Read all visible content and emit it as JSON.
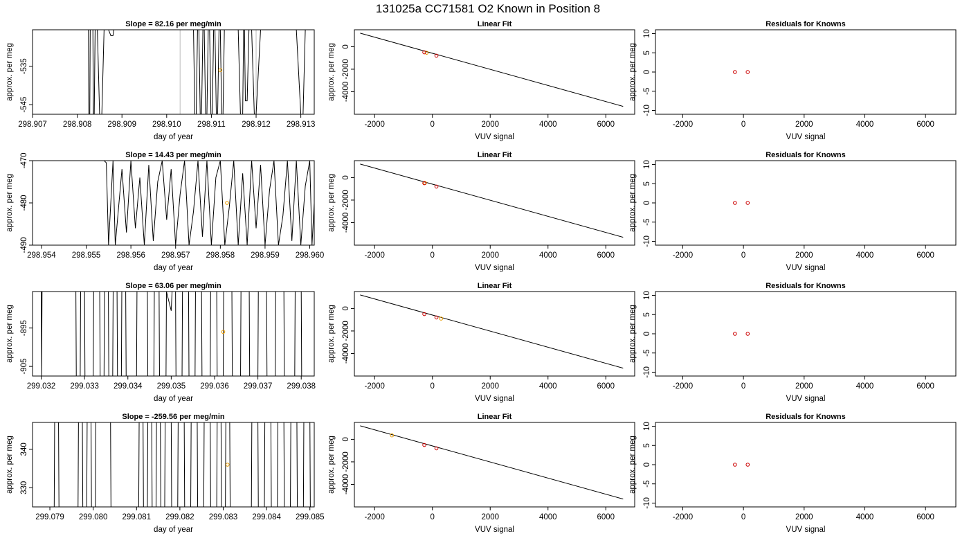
{
  "page_title": "131025a     CC71581   O2 Known in Position  8",
  "chart_data": [
    {
      "type": "line",
      "row": 0,
      "col": 0,
      "title": "Slope =  82.16  per meg/min",
      "xlabel": "day of year",
      "ylabel": "approx. per meg",
      "xlim": [
        298.907,
        298.9133
      ],
      "ylim": [
        -547.5,
        -525.5
      ],
      "xticks": [
        298.907,
        298.908,
        298.909,
        298.91,
        298.911,
        298.912,
        298.913
      ],
      "xtick_labels": [
        "298.907",
        "298.908",
        "298.909",
        "298.910",
        "298.911",
        "298.912",
        "298.913"
      ],
      "yticks": [
        -535,
        -545
      ],
      "ytick_labels": [
        "-535",
        "-545"
      ],
      "trace_x": [
        298.90825,
        298.90826,
        298.90828,
        298.90829,
        298.90835,
        298.90836,
        298.90838,
        298.9084,
        298.90845,
        298.9085,
        298.90855,
        298.9086,
        298.9087,
        298.90875,
        298.9088,
        298.90882,
        298.90884,
        298.90886,
        298.9089,
        298.909,
        298.9095,
        298.91,
        298.9103,
        298.9106,
        298.91063,
        298.91066,
        298.91069,
        298.91072,
        298.91075,
        298.91078,
        298.91081,
        298.91084,
        298.91087,
        298.9109,
        298.91093,
        298.91096,
        298.91099,
        298.91102,
        298.91105,
        298.91108,
        298.91111,
        298.91114,
        298.91117,
        298.9112,
        298.91123,
        298.91126,
        298.91129,
        298.9114,
        298.9116,
        298.91165,
        298.9117,
        298.91172,
        298.91174,
        298.91176,
        298.9118,
        298.91184,
        298.9119,
        298.91196,
        298.912,
        298.9121,
        298.9123,
        298.9125,
        298.9129,
        298.913,
        298.91305,
        298.9131,
        298.91313,
        298.9132
      ],
      "trace_y": [
        -525.5,
        -547.5,
        -547.5,
        -525.5,
        -525.5,
        -547.5,
        -547.5,
        -525.5,
        -525.5,
        -547.5,
        -547.5,
        -525.5,
        -525.5,
        -527,
        -527,
        -525.5,
        -525.5,
        -525.5,
        -525.5,
        -525.5,
        -525.5,
        -525.5,
        -525.5,
        -525.5,
        -547.5,
        -547.5,
        -525.5,
        -525.5,
        -547.5,
        -547.5,
        -525.5,
        -525.5,
        -547.5,
        -547.5,
        -525.5,
        -525.5,
        -547.5,
        -547.5,
        -525.5,
        -525.5,
        -547.5,
        -547.5,
        -525.5,
        -525.5,
        -547.5,
        -547.5,
        -525.5,
        -525.5,
        -525.5,
        -547.5,
        -547.5,
        -525.5,
        -525.5,
        -544,
        -544,
        -525.5,
        -525.5,
        -547.5,
        -547.5,
        -525.5,
        -525.5,
        -525.5,
        -525.5,
        -547.5,
        -547.5,
        -525.5,
        -525.5,
        -525.5
      ],
      "grey_lines_x": [
        298.9103,
        298.912
      ],
      "known_point": {
        "x": 298.9112,
        "y": -536
      }
    },
    {
      "type": "scatter",
      "row": 0,
      "col": 1,
      "title": "Linear Fit",
      "xlabel": "VUV signal",
      "ylabel": "approx. per meg",
      "xlim": [
        -2700,
        7000
      ],
      "ylim": [
        -6000,
        1500
      ],
      "xticks": [
        -2000,
        0,
        2000,
        4000,
        6000
      ],
      "xtick_labels": [
        "-2000",
        "0",
        "2000",
        "4000",
        "6000"
      ],
      "yticks": [
        0,
        -2000,
        -4000
      ],
      "ytick_labels": [
        "0",
        "-2000",
        "-4000"
      ],
      "fit_line": {
        "x": [
          -2500,
          6600
        ],
        "y": [
          1200,
          -5300
        ]
      },
      "points_red": [
        {
          "x": -280,
          "y": -500
        },
        {
          "x": 140,
          "y": -800
        }
      ],
      "points_orange": [
        {
          "x": -200,
          "y": -540
        }
      ]
    },
    {
      "type": "scatter",
      "row": 0,
      "col": 2,
      "title": "Residuals for Knowns",
      "xlabel": "VUV signal",
      "ylabel": "approx. per meg",
      "xlim": [
        -2900,
        7000
      ],
      "ylim": [
        -11,
        11
      ],
      "xticks": [
        -2000,
        0,
        2000,
        4000,
        6000
      ],
      "xtick_labels": [
        "-2000",
        "0",
        "2000",
        "4000",
        "6000"
      ],
      "yticks": [
        10,
        5,
        0,
        -5,
        -10
      ],
      "ytick_labels": [
        "10",
        "5",
        "0",
        "-5",
        "-10"
      ],
      "points_red": [
        {
          "x": -280,
          "y": 0
        },
        {
          "x": 140,
          "y": 0
        }
      ]
    },
    {
      "type": "line",
      "row": 1,
      "col": 0,
      "title": "Slope =  14.43  per meg/min",
      "xlabel": "day of year",
      "ylabel": "approx. per meg",
      "xlim": [
        298.9538,
        298.9601
      ],
      "ylim": [
        -490,
        -470
      ],
      "xticks": [
        298.954,
        298.955,
        298.956,
        298.957,
        298.958,
        298.959,
        298.96
      ],
      "xtick_labels": [
        "298.954",
        "298.955",
        "298.956",
        "298.957",
        "298.958",
        "298.959",
        "298.960"
      ],
      "yticks": [
        -470,
        -480,
        -490
      ],
      "ytick_labels": [
        "-470",
        "-480",
        "-490"
      ],
      "trace_x": [
        298.9554,
        298.95545,
        298.9555,
        298.9556,
        298.95565,
        298.9558,
        298.9559,
        298.956,
        298.9561,
        298.9562,
        298.9563,
        298.9564,
        298.9565,
        298.9566,
        298.9567,
        298.9568,
        298.9569,
        298.957,
        298.9571,
        298.9572,
        298.9573,
        298.9574,
        298.9575,
        298.9576,
        298.9577,
        298.9578,
        298.9579,
        298.958,
        298.9581,
        298.9582,
        298.9583,
        298.9584,
        298.9585,
        298.9586,
        298.9587,
        298.9588,
        298.9589,
        298.959,
        298.9591,
        298.9592,
        298.9593,
        298.9594,
        298.9595,
        298.9596,
        298.9597,
        298.9598,
        298.9599,
        298.96,
        298.96005,
        298.9601
      ],
      "trace_y": [
        -470,
        -470.5,
        -490,
        -470,
        -490,
        -472,
        -487,
        -470,
        -486,
        -474,
        -490,
        -471,
        -489,
        -475,
        -470,
        -484,
        -472,
        -490,
        -478,
        -470,
        -490,
        -482,
        -470,
        -488,
        -470,
        -490,
        -474,
        -470,
        -490,
        -481,
        -470,
        -490,
        -473,
        -490,
        -470,
        -486,
        -471,
        -490,
        -477,
        -470,
        -490,
        -483,
        -470,
        -489,
        -470,
        -490,
        -476,
        -470,
        -490,
        -480
      ],
      "grey_lines_x": [],
      "known_point": {
        "x": 298.95815,
        "y": -480
      }
    },
    {
      "type": "scatter",
      "row": 1,
      "col": 1,
      "title": "Linear Fit",
      "xlabel": "VUV signal",
      "ylabel": "approx. per meg",
      "xlim": [
        -2700,
        7000
      ],
      "ylim": [
        -6000,
        1500
      ],
      "xticks": [
        -2000,
        0,
        2000,
        4000,
        6000
      ],
      "xtick_labels": [
        "-2000",
        "0",
        "2000",
        "4000",
        "6000"
      ],
      "yticks": [
        0,
        -2000,
        -4000
      ],
      "ytick_labels": [
        "0",
        "-2000",
        "-4000"
      ],
      "fit_line": {
        "x": [
          -2500,
          6600
        ],
        "y": [
          1200,
          -5300
        ]
      },
      "points_red": [
        {
          "x": -280,
          "y": -500
        },
        {
          "x": 140,
          "y": -800
        }
      ],
      "points_orange": [
        {
          "x": -260,
          "y": -480
        }
      ]
    },
    {
      "type": "scatter",
      "row": 1,
      "col": 2,
      "title": "Residuals for Knowns",
      "xlabel": "VUV signal",
      "ylabel": "approx. per meg",
      "xlim": [
        -2900,
        7000
      ],
      "ylim": [
        -11,
        11
      ],
      "xticks": [
        -2000,
        0,
        2000,
        4000,
        6000
      ],
      "xtick_labels": [
        "-2000",
        "0",
        "2000",
        "4000",
        "6000"
      ],
      "yticks": [
        10,
        5,
        0,
        -5,
        -10
      ],
      "ytick_labels": [
        "10",
        "5",
        "0",
        "-5",
        "-10"
      ],
      "points_red": [
        {
          "x": -280,
          "y": 0
        },
        {
          "x": 140,
          "y": 0
        }
      ]
    },
    {
      "type": "line",
      "row": 2,
      "col": 0,
      "title": "Slope =  63.06  per meg/min",
      "xlabel": "day of year",
      "ylabel": "approx. per meg",
      "xlim": [
        299.0318,
        299.0383
      ],
      "ylim": [
        -907.5,
        -885.5
      ],
      "xticks": [
        299.032,
        299.033,
        299.034,
        299.035,
        299.036,
        299.037,
        299.038
      ],
      "xtick_labels": [
        "299.032",
        "299.033",
        "299.034",
        "299.035",
        "299.036",
        "299.037",
        "299.038"
      ],
      "yticks": [
        -895,
        -905
      ],
      "ytick_labels": [
        "-895",
        "-905"
      ],
      "trace_x": [
        299.032,
        299.03201,
        299.03202,
        299.0328,
        299.03281,
        299.0329,
        299.03291,
        299.033,
        299.03301,
        299.0332,
        299.03321,
        299.03335,
        299.03336,
        299.03345,
        299.03346,
        299.03355,
        299.03356,
        299.03365,
        299.03366,
        299.03375,
        299.03376,
        299.03385,
        299.03386,
        299.03395,
        299.03396,
        299.0342,
        299.03421,
        299.03445,
        299.03446,
        299.0346,
        299.03461,
        299.03472,
        299.03473,
        299.03488,
        299.03489,
        299.035,
        299.03502,
        299.0351,
        299.03511,
        299.03525,
        299.03526,
        299.0354,
        299.03541,
        299.03555,
        299.03556,
        299.0357,
        299.03571,
        299.0359,
        299.03591,
        299.03605,
        299.03606,
        299.0362,
        299.03621,
        299.0364,
        299.03641,
        299.0366,
        299.03661,
        299.0368,
        299.03681,
        299.037,
        299.03701,
        299.0372,
        299.03721,
        299.0374,
        299.03741,
        299.0376,
        299.03761,
        299.03785,
        299.03786,
        299.038,
        299.03801,
        299.03808
      ],
      "trace_y": [
        -885.5,
        -907.5,
        -885.5,
        -885.5,
        -907.5,
        -907.5,
        -885.5,
        -885.5,
        -907.5,
        -907.5,
        -885.5,
        -885.5,
        -907.5,
        -907.5,
        -885.5,
        -885.5,
        -907.5,
        -907.5,
        -885.5,
        -885.5,
        -907.5,
        -907.5,
        -885.5,
        -885.5,
        -907.5,
        -907.5,
        -885.5,
        -885.5,
        -907.5,
        -907.5,
        -885.5,
        -885.5,
        -907.5,
        -907.5,
        -885.5,
        -890.5,
        -885.5,
        -885.5,
        -907.5,
        -907.5,
        -885.5,
        -885.5,
        -907.5,
        -907.5,
        -885.5,
        -885.5,
        -907.5,
        -907.5,
        -885.5,
        -885.5,
        -907.5,
        -907.5,
        -885.5,
        -885.5,
        -907.5,
        -907.5,
        -885.5,
        -885.5,
        -907.5,
        -907.5,
        -885.5,
        -885.5,
        -907.5,
        -907.5,
        -885.5,
        -885.5,
        -907.5,
        -907.5,
        -885.5,
        -885.5,
        -907.5,
        -907.5
      ],
      "grey_lines_x": [],
      "known_point": {
        "x": 299.0362,
        "y": -896
      }
    },
    {
      "type": "scatter",
      "row": 2,
      "col": 1,
      "title": "Linear Fit",
      "xlabel": "VUV signal",
      "ylabel": "approx. per meg",
      "xlim": [
        -2700,
        7000
      ],
      "ylim": [
        -6000,
        1500
      ],
      "xticks": [
        -2000,
        0,
        2000,
        4000,
        6000
      ],
      "xtick_labels": [
        "-2000",
        "0",
        "2000",
        "4000",
        "6000"
      ],
      "yticks": [
        0,
        -2000,
        -4000
      ],
      "ytick_labels": [
        "0",
        "-2000",
        "-4000"
      ],
      "fit_line": {
        "x": [
          -2500,
          6600
        ],
        "y": [
          1200,
          -5300
        ]
      },
      "points_red": [
        {
          "x": -280,
          "y": -500
        },
        {
          "x": 140,
          "y": -800
        }
      ],
      "points_orange": [
        {
          "x": 300,
          "y": -900
        }
      ]
    },
    {
      "type": "scatter",
      "row": 2,
      "col": 2,
      "title": "Residuals for Knowns",
      "xlabel": "VUV signal",
      "ylabel": "approx. per meg",
      "xlim": [
        -2900,
        7000
      ],
      "ylim": [
        -11,
        11
      ],
      "xticks": [
        -2000,
        0,
        2000,
        4000,
        6000
      ],
      "xtick_labels": [
        "-2000",
        "0",
        "2000",
        "4000",
        "6000"
      ],
      "yticks": [
        10,
        5,
        0,
        -5,
        -10
      ],
      "ytick_labels": [
        "10",
        "5",
        "0",
        "-5",
        "-10"
      ],
      "points_red": [
        {
          "x": -280,
          "y": 0
        },
        {
          "x": 140,
          "y": 0
        }
      ]
    },
    {
      "type": "line",
      "row": 3,
      "col": 0,
      "title": "Slope =  -259.56  per meg/min",
      "xlabel": "day of year",
      "ylabel": "approx. per meg",
      "xlim": [
        299.0786,
        299.0851
      ],
      "ylim": [
        325,
        347
      ],
      "xticks": [
        299.079,
        299.08,
        299.081,
        299.082,
        299.083,
        299.084,
        299.085
      ],
      "xtick_labels": [
        "299.079",
        "299.080",
        "299.081",
        "299.082",
        "299.083",
        "299.084",
        "299.085"
      ],
      "yticks": [
        340,
        330
      ],
      "ytick_labels": [
        "340",
        "330"
      ],
      "trace_x": [
        299.0791,
        299.07911,
        299.0792,
        299.07921,
        299.07965,
        299.07966,
        299.07975,
        299.07976,
        299.07985,
        299.07986,
        299.07995,
        299.07996,
        299.08005,
        299.08006,
        299.0804,
        299.08041,
        299.08105,
        299.08106,
        299.08115,
        299.08116,
        299.08125,
        299.08126,
        299.08135,
        299.08136,
        299.08145,
        299.08146,
        299.08155,
        299.08156,
        299.08165,
        299.08166,
        299.0818,
        299.08181,
        299.08195,
        299.08196,
        299.0821,
        299.08211,
        299.08225,
        299.08226,
        299.0824,
        299.08241,
        299.08255,
        299.08256,
        299.0827,
        299.08271,
        299.08285,
        299.08286,
        299.08295,
        299.08296,
        299.08305,
        299.08306,
        299.08315,
        299.08316,
        299.08365,
        299.08366,
        299.0838,
        299.08381,
        299.08395,
        299.08396,
        299.0841,
        299.08411,
        299.08425,
        299.08426,
        299.0844,
        299.08441,
        299.08455,
        299.08456,
        299.0847,
        299.08471,
        299.08485,
        299.08486,
        299.085,
        299.08501
      ],
      "trace_y": [
        325,
        347,
        347,
        325,
        325,
        347,
        347,
        325,
        325,
        347,
        347,
        325,
        325,
        347,
        347,
        325,
        325,
        347,
        347,
        325,
        325,
        347,
        347,
        325,
        325,
        347,
        347,
        325,
        325,
        347,
        347,
        325,
        325,
        347,
        347,
        325,
        325,
        347,
        347,
        325,
        325,
        347,
        347,
        325,
        325,
        347,
        347,
        325,
        325,
        347,
        347,
        325,
        325,
        347,
        347,
        325,
        325,
        347,
        347,
        325,
        325,
        347,
        347,
        325,
        325,
        347,
        347,
        325,
        325,
        347,
        347,
        325
      ],
      "grey_lines_x": [],
      "known_point": {
        "x": 299.0831,
        "y": 336
      }
    },
    {
      "type": "scatter",
      "row": 3,
      "col": 1,
      "title": "Linear Fit",
      "xlabel": "VUV signal",
      "ylabel": "approx. per meg",
      "xlim": [
        -2700,
        7000
      ],
      "ylim": [
        -6000,
        1500
      ],
      "xticks": [
        -2000,
        0,
        2000,
        4000,
        6000
      ],
      "xtick_labels": [
        "-2000",
        "0",
        "2000",
        "4000",
        "6000"
      ],
      "yticks": [
        0,
        -2000,
        -4000
      ],
      "ytick_labels": [
        "0",
        "-2000",
        "-4000"
      ],
      "fit_line": {
        "x": [
          -2500,
          6600
        ],
        "y": [
          1200,
          -5300
        ]
      },
      "points_red": [
        {
          "x": -280,
          "y": -500
        },
        {
          "x": 140,
          "y": -800
        }
      ],
      "points_orange": [
        {
          "x": -1400,
          "y": 350
        }
      ]
    },
    {
      "type": "scatter",
      "row": 3,
      "col": 2,
      "title": "Residuals for Knowns",
      "xlabel": "VUV signal",
      "ylabel": "approx. per meg",
      "xlim": [
        -2900,
        7000
      ],
      "ylim": [
        -11,
        11
      ],
      "xticks": [
        -2000,
        0,
        2000,
        4000,
        6000
      ],
      "xtick_labels": [
        "-2000",
        "0",
        "2000",
        "4000",
        "6000"
      ],
      "yticks": [
        10,
        5,
        0,
        -5,
        -10
      ],
      "ytick_labels": [
        "10",
        "5",
        "0",
        "-5",
        "-10"
      ],
      "points_red": [
        {
          "x": -280,
          "y": 0
        },
        {
          "x": 140,
          "y": 0
        }
      ]
    }
  ],
  "colors": {
    "line": "#000000",
    "known": "#e89b00",
    "residual": "#cc0000",
    "grey": "#bbbbbb"
  }
}
